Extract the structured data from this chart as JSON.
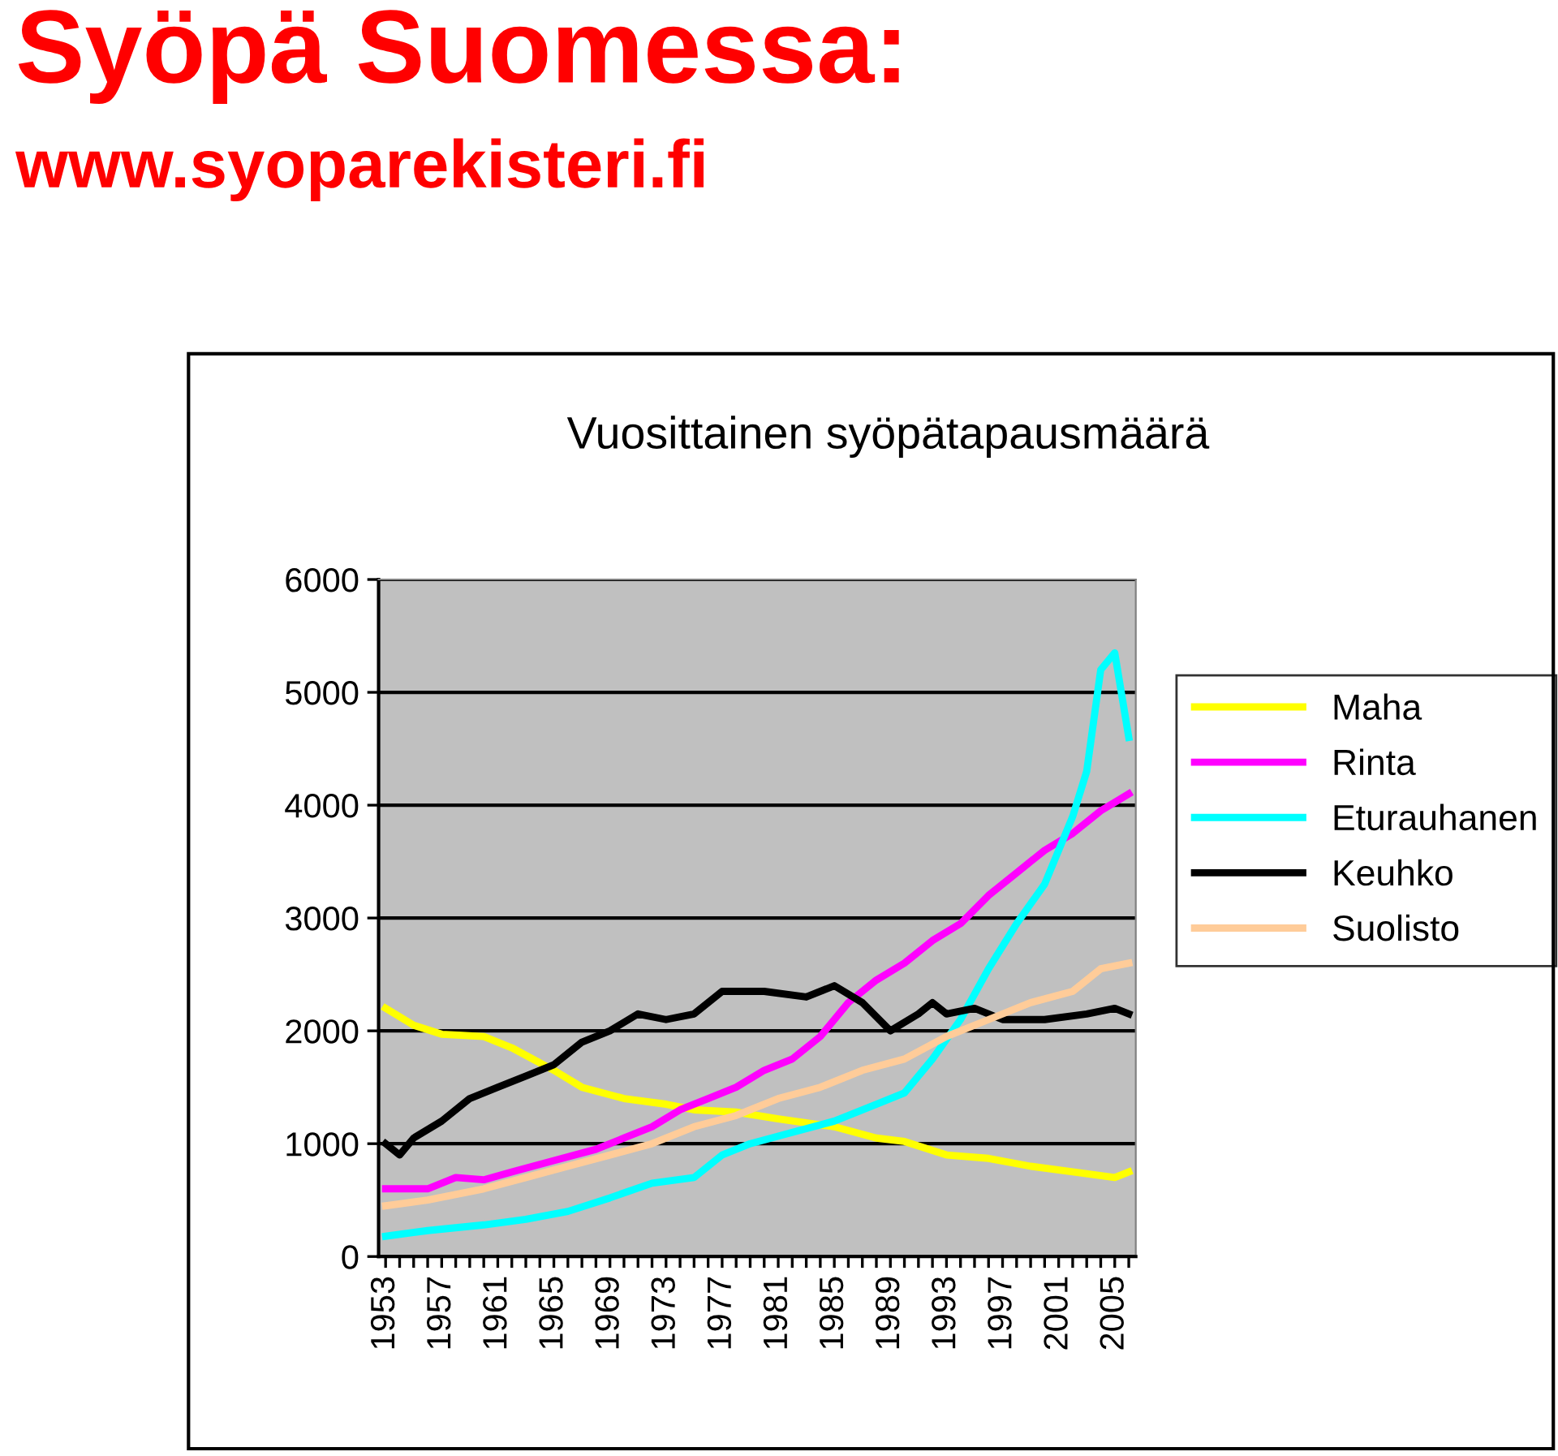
{
  "chart_data": {
    "type": "line",
    "title": "Vuosittainen syöpätapausmäärä",
    "annotations": [
      "Syöpä Suomessa:",
      "www.syoparekisteri.fi"
    ],
    "xlim": [
      1952.5,
      2006.5
    ],
    "xticks": [
      1953,
      {
        "value": 1954,
        "label": null
      },
      {
        "value": 1955,
        "label": null
      },
      {
        "value": 1956,
        "label": null
      },
      1957,
      {
        "value": 1958,
        "label": null
      },
      {
        "value": 1959,
        "label": null
      },
      {
        "value": 1960,
        "label": null
      },
      1961,
      {
        "value": 1962,
        "label": null
      },
      {
        "value": 1963,
        "label": null
      },
      {
        "value": 1964,
        "label": null
      },
      1965,
      {
        "value": 1966,
        "label": null
      },
      {
        "value": 1967,
        "label": null
      },
      {
        "value": 1968,
        "label": null
      },
      1969,
      {
        "value": 1970,
        "label": null
      },
      {
        "value": 1971,
        "label": null
      },
      {
        "value": 1972,
        "label": null
      },
      1973,
      {
        "value": 1974,
        "label": null
      },
      {
        "value": 1975,
        "label": null
      },
      {
        "value": 1976,
        "label": null
      },
      1977,
      {
        "value": 1978,
        "label": null
      },
      {
        "value": 1979,
        "label": null
      },
      {
        "value": 1980,
        "label": null
      },
      1981,
      {
        "value": 1982,
        "label": null
      },
      {
        "value": 1983,
        "label": null
      },
      {
        "value": 1984,
        "label": null
      },
      1985,
      {
        "value": 1986,
        "label": null
      },
      {
        "value": 1987,
        "label": null
      },
      {
        "value": 1988,
        "label": null
      },
      1989,
      {
        "value": 1990,
        "label": null
      },
      {
        "value": 1991,
        "label": null
      },
      {
        "value": 1992,
        "label": null
      },
      1993,
      {
        "value": 1994,
        "label": null
      },
      {
        "value": 1995,
        "label": null
      },
      {
        "value": 1996,
        "label": null
      },
      1997,
      {
        "value": 1998,
        "label": null
      },
      {
        "value": 1999,
        "label": null
      },
      {
        "value": 2000,
        "label": null
      },
      2001,
      {
        "value": 2002,
        "label": null
      },
      {
        "value": 2003,
        "label": null
      },
      {
        "value": 2004,
        "label": null
      },
      2005,
      {
        "value": 2006,
        "label": null
      }
    ],
    "ylim": [
      0,
      6000
    ],
    "yticks": [
      0,
      1000,
      2000,
      3000,
      4000,
      5000,
      6000
    ],
    "grid": "y",
    "legend": "right",
    "marker": "none",
    "line_style": "solid",
    "series": [
      {
        "name": "Maha",
        "color": "#ffff00",
        "x": [
          1953,
          1955,
          1957,
          1960,
          1962,
          1965,
          1967,
          1970,
          1973,
          1975,
          1978,
          1981,
          1985,
          1988,
          1990,
          1993,
          1996,
          1999,
          2002,
          2005,
          2006
        ],
        "values": [
          2200,
          2050,
          1970,
          1950,
          1850,
          1650,
          1500,
          1400,
          1350,
          1300,
          1280,
          1220,
          1150,
          1050,
          1020,
          900,
          870,
          800,
          750,
          700,
          750
        ]
      },
      {
        "name": "Rinta",
        "color": "#ff00ff",
        "x": [
          1953,
          1956,
          1958,
          1960,
          1962,
          1965,
          1968,
          1970,
          1972,
          1974,
          1976,
          1978,
          1980,
          1982,
          1984,
          1986,
          1988,
          1990,
          1992,
          1994,
          1996,
          1998,
          2000,
          2002,
          2004,
          2006
        ],
        "values": [
          600,
          600,
          700,
          680,
          750,
          850,
          950,
          1050,
          1150,
          1300,
          1400,
          1500,
          1650,
          1750,
          1950,
          2250,
          2450,
          2600,
          2800,
          2950,
          3200,
          3400,
          3600,
          3750,
          3950,
          4100
        ]
      },
      {
        "name": "Eturauhanen",
        "color": "#00ffff",
        "x": [
          1953,
          1956,
          1960,
          1963,
          1966,
          1969,
          1972,
          1975,
          1977,
          1979,
          1982,
          1985,
          1988,
          1990,
          1992,
          1994,
          1996,
          1998,
          2000,
          2002,
          2003,
          2004,
          2005,
          2006
        ],
        "values": [
          180,
          230,
          280,
          330,
          400,
          520,
          650,
          700,
          900,
          1000,
          1100,
          1200,
          1350,
          1450,
          1750,
          2100,
          2550,
          2950,
          3300,
          3900,
          4300,
          5200,
          5350,
          4600
        ]
      },
      {
        "name": "Keuhko",
        "color": "#000000",
        "x": [
          1953,
          1954,
          1955,
          1957,
          1959,
          1961,
          1963,
          1965,
          1967,
          1969,
          1971,
          1973,
          1975,
          1977,
          1980,
          1983,
          1985,
          1987,
          1989,
          1991,
          1992,
          1993,
          1995,
          1997,
          2000,
          2003,
          2005,
          2006
        ],
        "values": [
          1000,
          900,
          1050,
          1200,
          1400,
          1500,
          1600,
          1700,
          1900,
          2000,
          2150,
          2100,
          2150,
          2350,
          2350,
          2300,
          2400,
          2250,
          2000,
          2150,
          2250,
          2150,
          2200,
          2100,
          2100,
          2150,
          2200,
          2150
        ]
      },
      {
        "name": "Suolisto",
        "color": "#ffcc99",
        "x": [
          1953,
          1956,
          1960,
          1963,
          1966,
          1969,
          1972,
          1975,
          1978,
          1981,
          1984,
          1987,
          1990,
          1993,
          1996,
          1999,
          2002,
          2004,
          2006
        ],
        "values": [
          450,
          500,
          600,
          700,
          800,
          900,
          1000,
          1150,
          1250,
          1400,
          1500,
          1650,
          1750,
          1950,
          2100,
          2250,
          2350,
          2550,
          2600
        ]
      }
    ]
  }
}
